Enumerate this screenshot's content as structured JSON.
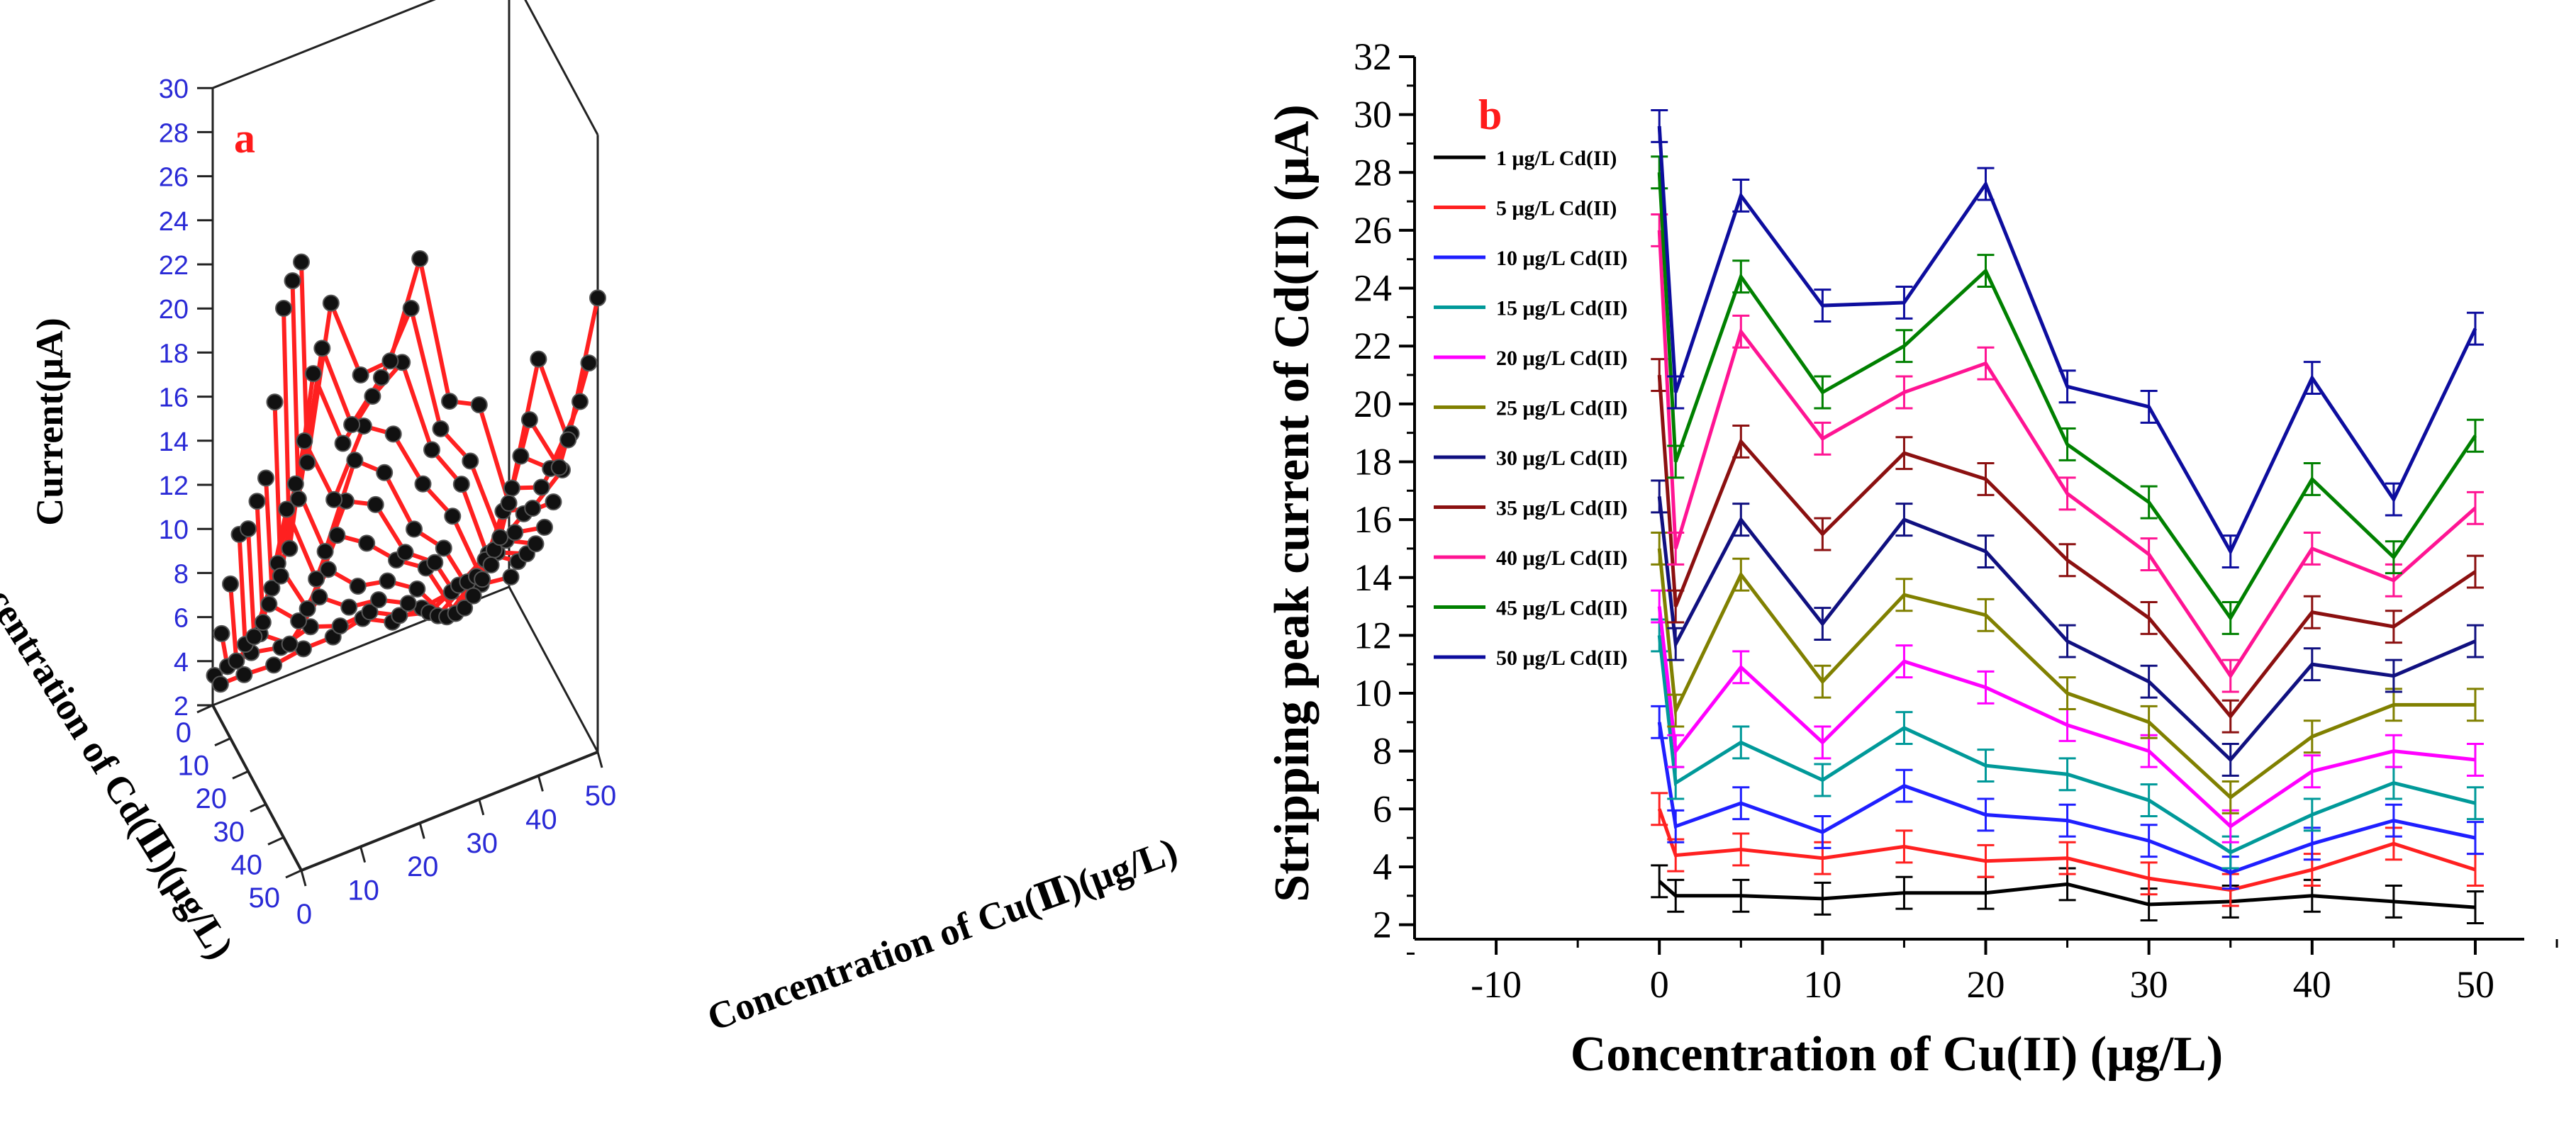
{
  "chart_data": [
    {
      "type": "scatter",
      "panel_label": "a",
      "projection": "3d",
      "zlabel": "Current(μA)",
      "xlabel": "Concentration of Cd(Ⅱ)(μg/L)",
      "ylabel": "Concentration of Cu(Ⅱ)(μg/L)",
      "zlim": [
        2,
        30
      ],
      "xlim": [
        0,
        50
      ],
      "ylim": [
        0,
        50
      ],
      "z_ticks": [
        "2",
        "4",
        "6",
        "8",
        "10",
        "12",
        "14",
        "16",
        "18",
        "20",
        "22",
        "24",
        "26",
        "28",
        "30"
      ],
      "x_ticks": [
        "0",
        "10",
        "20",
        "30",
        "40",
        "50"
      ],
      "y_ticks": [
        "0",
        "10",
        "20",
        "30",
        "40",
        "50"
      ],
      "line_color": "#ff2020",
      "marker_color": "#111111",
      "cu_values": [
        0,
        1,
        5,
        10,
        15,
        20,
        25,
        30,
        35,
        40,
        45,
        50
      ],
      "cd_values": [
        1,
        5,
        10,
        15,
        20,
        25,
        30,
        35,
        40,
        45,
        50
      ]
    },
    {
      "type": "line",
      "panel_label": "b",
      "title": "",
      "xlabel": "Concentration of Cu(II) (μg/L)",
      "ylabel": "Stripping peak current of Cd(II) (μA)",
      "xlim": [
        -15,
        53
      ],
      "ylim": [
        1.5,
        32
      ],
      "x_ticks": [
        -10,
        0,
        10,
        20,
        30,
        40,
        50
      ],
      "y_ticks": [
        2,
        4,
        6,
        8,
        10,
        12,
        14,
        16,
        18,
        20,
        22,
        24,
        26,
        28,
        30,
        32
      ],
      "x": [
        0,
        1,
        5,
        10,
        15,
        20,
        25,
        30,
        35,
        40,
        45,
        50
      ],
      "legend_position": "top-left",
      "series": [
        {
          "name": "1 μg/L Cd(II)",
          "color": "#000000",
          "values": [
            3.5,
            3.0,
            3.0,
            2.9,
            3.1,
            3.1,
            3.4,
            2.7,
            2.8,
            3.0,
            2.8,
            2.6
          ]
        },
        {
          "name": "5 μg/L Cd(II)",
          "color": "#ff2020",
          "values": [
            6.0,
            4.4,
            4.6,
            4.3,
            4.7,
            4.2,
            4.3,
            3.6,
            3.2,
            3.9,
            4.8,
            3.9
          ]
        },
        {
          "name": "10 μg/L Cd(II)",
          "color": "#1f1fff",
          "values": [
            9.0,
            5.4,
            6.2,
            5.2,
            6.8,
            5.8,
            5.6,
            4.9,
            3.8,
            4.8,
            5.6,
            5.0
          ]
        },
        {
          "name": "15 μg/L Cd(II)",
          "color": "#009999",
          "values": [
            12.0,
            6.9,
            8.3,
            7.0,
            8.8,
            7.5,
            7.2,
            6.3,
            4.5,
            5.8,
            6.9,
            6.2
          ]
        },
        {
          "name": "20 μg/L Cd(II)",
          "color": "#ff00ff",
          "values": [
            13.0,
            8.0,
            10.9,
            8.3,
            11.1,
            10.2,
            8.9,
            8.0,
            5.4,
            7.3,
            8.0,
            7.7
          ]
        },
        {
          "name": "25 μg/L Cd(II)",
          "color": "#808000",
          "values": [
            15.0,
            9.4,
            14.1,
            10.4,
            13.4,
            12.7,
            10.0,
            9.0,
            6.4,
            8.5,
            9.6,
            9.6
          ]
        },
        {
          "name": "30 μg/L Cd(II)",
          "color": "#101080",
          "values": [
            16.8,
            11.7,
            16.0,
            12.4,
            16.0,
            14.9,
            11.8,
            10.4,
            7.7,
            11.0,
            10.6,
            11.8
          ]
        },
        {
          "name": "35 μg/L Cd(II)",
          "color": "#8b1010",
          "values": [
            21.0,
            13.0,
            18.7,
            15.5,
            18.3,
            17.4,
            14.6,
            12.6,
            9.2,
            12.8,
            12.3,
            14.2
          ]
        },
        {
          "name": "40 μg/L Cd(II)",
          "color": "#ff1493",
          "values": [
            26.0,
            15.0,
            22.5,
            18.8,
            20.4,
            21.4,
            16.9,
            14.8,
            10.6,
            15.0,
            13.9,
            16.4
          ]
        },
        {
          "name": "45 μg/L Cd(II)",
          "color": "#008000",
          "values": [
            28.0,
            18.0,
            24.4,
            20.4,
            22.0,
            24.6,
            18.6,
            16.6,
            12.6,
            17.4,
            14.7,
            18.9
          ]
        },
        {
          "name": "50 μg/L Cd(II)",
          "color": "#0d0d9e",
          "values": [
            29.6,
            20.4,
            27.2,
            23.4,
            23.5,
            27.6,
            20.6,
            19.9,
            14.9,
            20.9,
            16.7,
            22.6
          ]
        }
      ],
      "error_bar": 0.55
    }
  ]
}
